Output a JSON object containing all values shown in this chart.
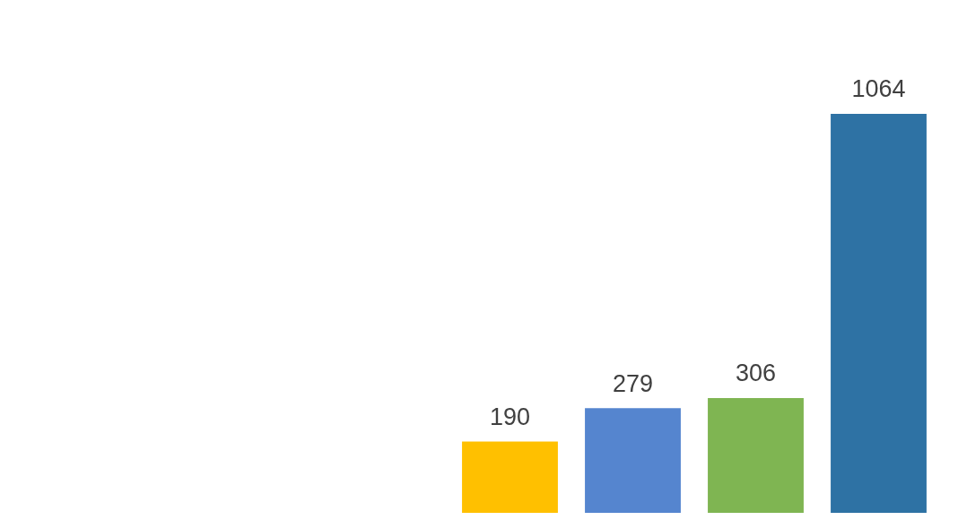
{
  "chart_data": {
    "type": "bar",
    "categories": [
      null,
      null,
      null,
      null
    ],
    "values": [
      190,
      279,
      306,
      1064
    ],
    "colors": [
      "#ffc000",
      "#5585cf",
      "#7fb552",
      "#2e72a4"
    ],
    "data_labels": true
  }
}
